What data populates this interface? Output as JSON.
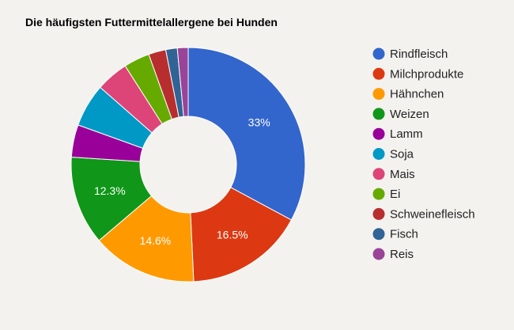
{
  "chart_data": {
    "type": "pie",
    "donut": true,
    "title": "Die häufigsten Futtermittelallergene bei Hunden",
    "legend_position": "right",
    "slices": [
      {
        "label": "Rindfleisch",
        "value": 33.0,
        "display": "33%",
        "color": "#3366cc"
      },
      {
        "label": "Milchprodukte",
        "value": 16.5,
        "display": "16.5%",
        "color": "#dc3912"
      },
      {
        "label": "Hähnchen",
        "value": 14.6,
        "display": "14.6%",
        "color": "#ff9900"
      },
      {
        "label": "Weizen",
        "value": 12.3,
        "display": "12.3%",
        "color": "#109618"
      },
      {
        "label": "Lamm",
        "value": 4.5,
        "display": "",
        "color": "#990099"
      },
      {
        "label": "Soja",
        "value": 6.0,
        "display": "",
        "color": "#0099c6"
      },
      {
        "label": "Mais",
        "value": 4.5,
        "display": "",
        "color": "#dd4477"
      },
      {
        "label": "Ei",
        "value": 3.6,
        "display": "",
        "color": "#66aa00"
      },
      {
        "label": "Schweinefleisch",
        "value": 2.4,
        "display": "",
        "color": "#b82e2e"
      },
      {
        "label": "Fisch",
        "value": 1.6,
        "display": "",
        "color": "#316395"
      },
      {
        "label": "Reis",
        "value": 1.5,
        "display": "",
        "color": "#994499"
      }
    ]
  }
}
